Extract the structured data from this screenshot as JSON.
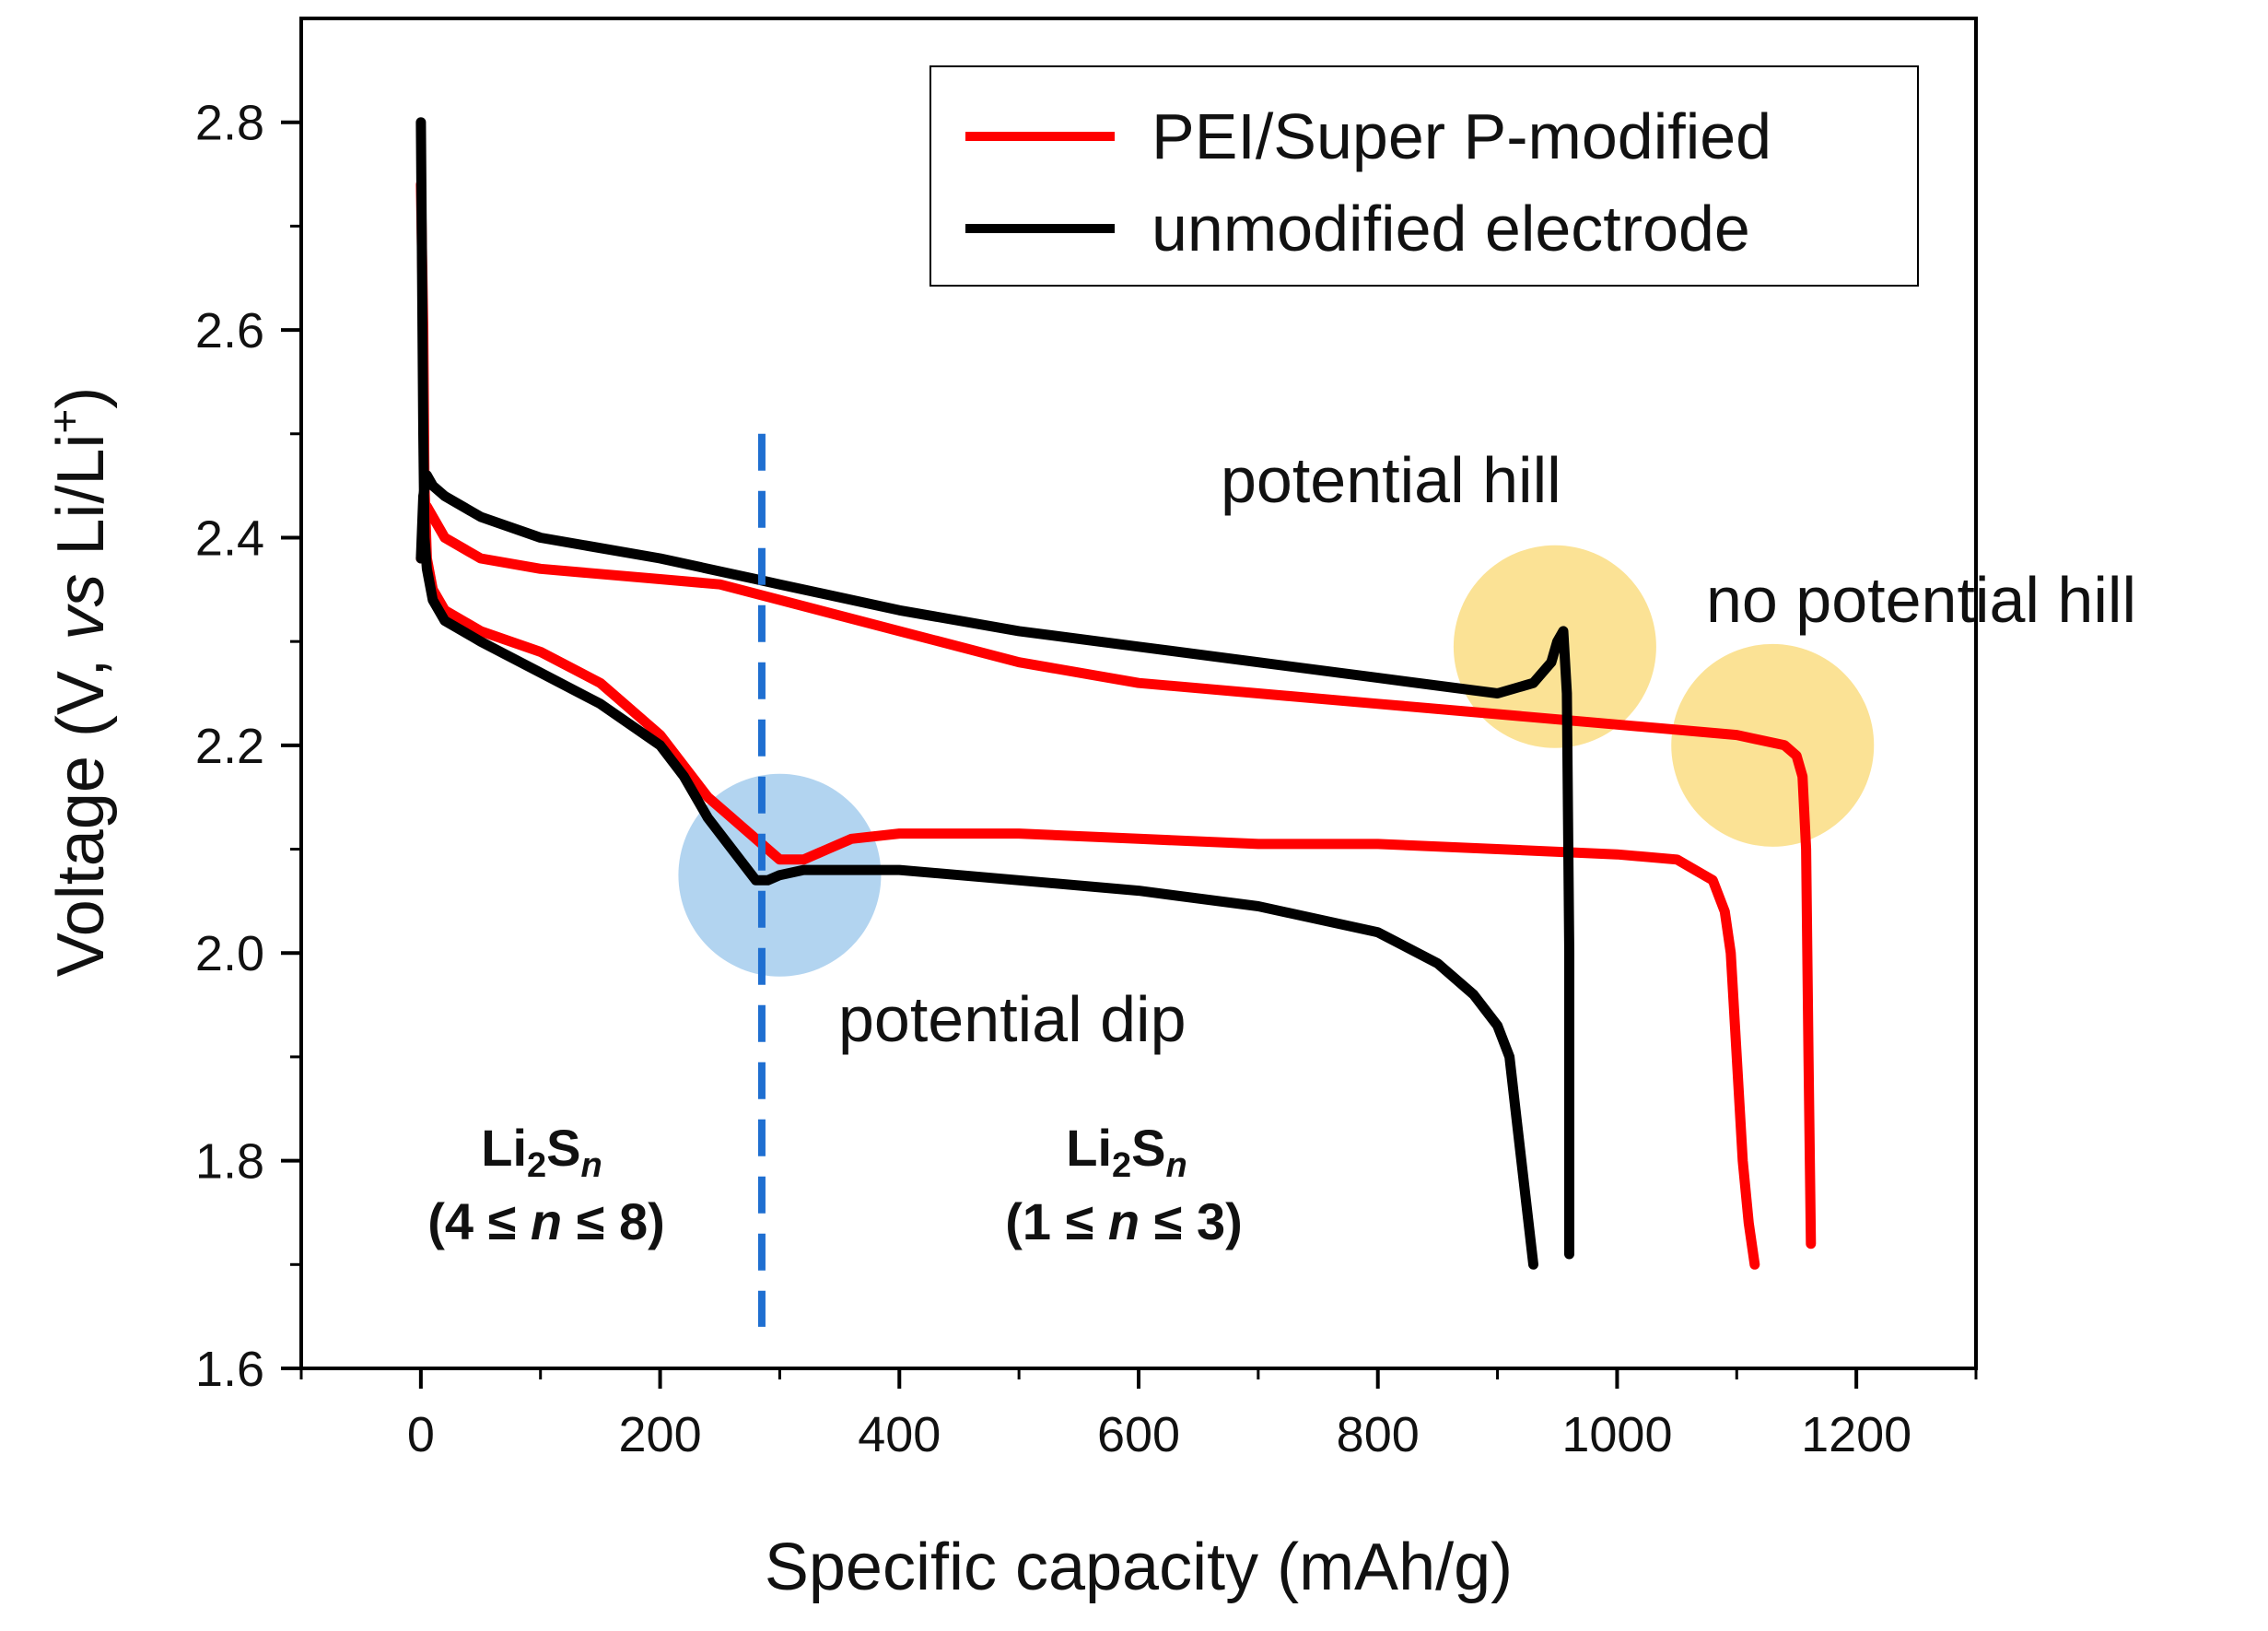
{
  "chart_data": {
    "type": "line",
    "title": "",
    "xlabel": "Specific capacity (mAh/g)",
    "ylabel_parts": {
      "pre": "Voltage (V, ",
      "vs": "vs",
      "post": " Li/Li",
      "sup": "+",
      "end": ")"
    },
    "xlim": [
      -100,
      1300
    ],
    "ylim": [
      1.6,
      2.9
    ],
    "xticks": [
      0,
      200,
      400,
      600,
      800,
      1000,
      1200
    ],
    "xtick_labels": [
      "0",
      "200",
      "400",
      "600",
      "800",
      "1000",
      "1200"
    ],
    "yticks": [
      1.6,
      1.8,
      2.0,
      2.2,
      2.4,
      2.6,
      2.8
    ],
    "ytick_labels": [
      "1.6",
      "1.8",
      "2.0",
      "2.2",
      "2.4",
      "2.6",
      "2.8"
    ],
    "series": [
      {
        "name": "PEI/Super P-modified",
        "color": "#ff0000",
        "part": "discharge",
        "x": [
          0,
          2,
          3,
          5,
          10,
          20,
          50,
          100,
          150,
          180,
          200,
          220,
          240,
          260,
          280,
          300,
          320,
          340,
          360,
          400,
          500,
          600,
          700,
          800,
          900,
          1000,
          1050,
          1080,
          1090,
          1095,
          1100,
          1105,
          1110,
          1115
        ],
        "y": [
          2.74,
          2.6,
          2.45,
          2.38,
          2.35,
          2.33,
          2.31,
          2.29,
          2.26,
          2.23,
          2.21,
          2.18,
          2.15,
          2.13,
          2.11,
          2.09,
          2.09,
          2.1,
          2.11,
          2.115,
          2.115,
          2.11,
          2.105,
          2.105,
          2.1,
          2.095,
          2.09,
          2.07,
          2.04,
          2.0,
          1.9,
          1.8,
          1.74,
          1.7
        ]
      },
      {
        "name": "PEI/Super P-modified",
        "color": "#ff0000",
        "part": "charge",
        "x": [
          0,
          2,
          5,
          10,
          20,
          50,
          100,
          200,
          250,
          300,
          400,
          500,
          600,
          700,
          800,
          900,
          1000,
          1100,
          1140,
          1150,
          1155,
          1158,
          1160,
          1162
        ],
        "y": [
          2.38,
          2.4,
          2.43,
          2.42,
          2.4,
          2.38,
          2.37,
          2.36,
          2.355,
          2.34,
          2.31,
          2.28,
          2.26,
          2.25,
          2.24,
          2.23,
          2.22,
          2.21,
          2.2,
          2.19,
          2.17,
          2.1,
          1.9,
          1.72
        ]
      },
      {
        "name": "unmodified electrode",
        "color": "#000000",
        "part": "discharge",
        "x": [
          0,
          2,
          3,
          5,
          10,
          20,
          50,
          100,
          150,
          200,
          220,
          240,
          260,
          280,
          290,
          300,
          320,
          350,
          400,
          500,
          600,
          700,
          800,
          850,
          880,
          900,
          910,
          915,
          920,
          925,
          930
        ],
        "y": [
          2.8,
          2.5,
          2.4,
          2.37,
          2.34,
          2.32,
          2.3,
          2.27,
          2.24,
          2.2,
          2.17,
          2.13,
          2.1,
          2.07,
          2.07,
          2.075,
          2.08,
          2.08,
          2.08,
          2.07,
          2.06,
          2.045,
          2.02,
          1.99,
          1.96,
          1.93,
          1.9,
          1.85,
          1.8,
          1.75,
          1.7
        ]
      },
      {
        "name": "unmodified electrode",
        "color": "#000000",
        "part": "charge",
        "x": [
          0,
          2,
          5,
          10,
          20,
          50,
          100,
          200,
          280,
          300,
          400,
          500,
          600,
          700,
          800,
          900,
          930,
          945,
          950,
          955,
          958,
          960,
          960
        ],
        "y": [
          2.38,
          2.44,
          2.46,
          2.45,
          2.44,
          2.42,
          2.4,
          2.38,
          2.36,
          2.355,
          2.33,
          2.31,
          2.295,
          2.28,
          2.265,
          2.25,
          2.26,
          2.28,
          2.3,
          2.31,
          2.25,
          2.0,
          1.71
        ]
      }
    ],
    "legend": {
      "position": "top-right",
      "entries": [
        {
          "label": "PEI/Super P-modified",
          "color": "#ff0000"
        },
        {
          "label": "unmodified electrode",
          "color": "#000000"
        }
      ]
    },
    "divider": {
      "x": 285,
      "color": "#1f6fd1",
      "style": "dashed"
    },
    "highlights": [
      {
        "name": "potential-dip",
        "x": 300,
        "y": 2.075,
        "color": "#7fb8e6"
      },
      {
        "name": "potential-hill",
        "x": 948,
        "y": 2.295,
        "color": "#f8cf4f"
      },
      {
        "name": "no-potential-hill",
        "x": 1130,
        "y": 2.2,
        "color": "#f8cf4f"
      }
    ],
    "annotations": {
      "potential_hill": "potential hill",
      "no_potential_hill": "no potential hill",
      "potential_dip": "potential dip"
    },
    "regions": [
      {
        "formula_base": "Li",
        "sub1": "2",
        "mid": "S",
        "sub2": "n",
        "range_open": "(4 ≤ ",
        "range_var": "n",
        "range_close": " ≤ 8)"
      },
      {
        "formula_base": "Li",
        "sub1": "2",
        "mid": "S",
        "sub2": "n",
        "range_open": "(1 ≤ ",
        "range_var": "n",
        "range_close": " ≤ 3)"
      }
    ]
  }
}
